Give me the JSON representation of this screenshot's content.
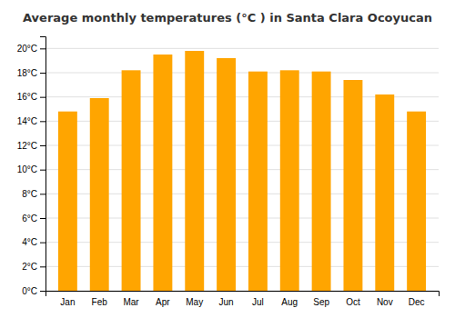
{
  "chart_data": {
    "type": "bar",
    "title": "Average monthly temperatures (°C ) in Santa Clara Ocoyucan",
    "categories": [
      "Jan",
      "Feb",
      "Mar",
      "Apr",
      "May",
      "Jun",
      "Jul",
      "Aug",
      "Sep",
      "Oct",
      "Nov",
      "Dec"
    ],
    "values": [
      14.8,
      15.9,
      18.2,
      19.5,
      19.8,
      19.2,
      18.1,
      18.2,
      18.1,
      17.4,
      16.2,
      14.8
    ],
    "color": "#FFA500",
    "ylim": [
      0,
      21
    ],
    "yticks": [
      {
        "value": 0,
        "label": "0°C"
      },
      {
        "value": 2,
        "label": "2°C"
      },
      {
        "value": 4,
        "label": "4°C"
      },
      {
        "value": 6,
        "label": "6°C"
      },
      {
        "value": 8,
        "label": "8°C"
      },
      {
        "value": 10,
        "label": "10°C"
      },
      {
        "value": 12,
        "label": "12°C"
      },
      {
        "value": 14,
        "label": "14°C"
      },
      {
        "value": 16,
        "label": "16°C"
      },
      {
        "value": 18,
        "label": "18°C"
      },
      {
        "value": 20,
        "label": "20°C"
      }
    ],
    "grid": true
  }
}
